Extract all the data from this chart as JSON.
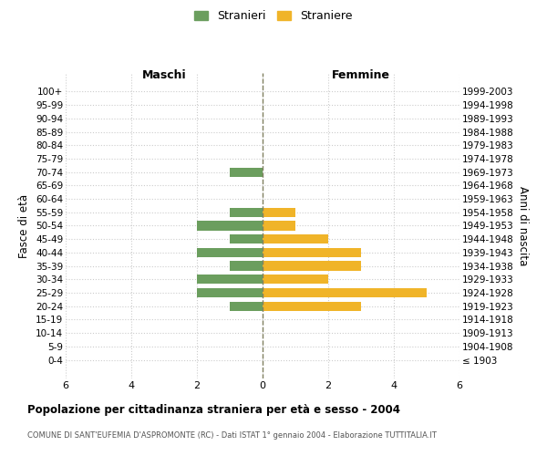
{
  "age_groups": [
    "100+",
    "95-99",
    "90-94",
    "85-89",
    "80-84",
    "75-79",
    "70-74",
    "65-69",
    "60-64",
    "55-59",
    "50-54",
    "45-49",
    "40-44",
    "35-39",
    "30-34",
    "25-29",
    "20-24",
    "15-19",
    "10-14",
    "5-9",
    "0-4"
  ],
  "birth_years": [
    "≤ 1903",
    "1904-1908",
    "1909-1913",
    "1914-1918",
    "1919-1923",
    "1924-1928",
    "1929-1933",
    "1934-1938",
    "1939-1943",
    "1944-1948",
    "1949-1953",
    "1954-1958",
    "1959-1963",
    "1964-1968",
    "1969-1973",
    "1974-1978",
    "1979-1983",
    "1984-1988",
    "1989-1993",
    "1994-1998",
    "1999-2003"
  ],
  "males": [
    0,
    0,
    0,
    0,
    0,
    0,
    1,
    0,
    0,
    1,
    2,
    1,
    2,
    1,
    2,
    2,
    1,
    0,
    0,
    0,
    0
  ],
  "females": [
    0,
    0,
    0,
    0,
    0,
    0,
    0,
    0,
    0,
    1,
    1,
    2,
    3,
    3,
    2,
    5,
    3,
    0,
    0,
    0,
    0
  ],
  "male_color": "#6b9e5e",
  "female_color": "#f0b429",
  "male_label": "Stranieri",
  "female_label": "Straniere",
  "title": "Popolazione per cittadinanza straniera per età e sesso - 2004",
  "subtitle": "COMUNE DI SANT'EUFEMIA D'ASPROMONTE (RC) - Dati ISTAT 1° gennaio 2004 - Elaborazione TUTTITALIA.IT",
  "xlabel_left": "Maschi",
  "xlabel_right": "Femmine",
  "ylabel_left": "Fasce di età",
  "ylabel_right": "Anni di nascita",
  "xlim": 6,
  "background_color": "#ffffff",
  "grid_color": "#cccccc",
  "center_line_color": "#808060"
}
